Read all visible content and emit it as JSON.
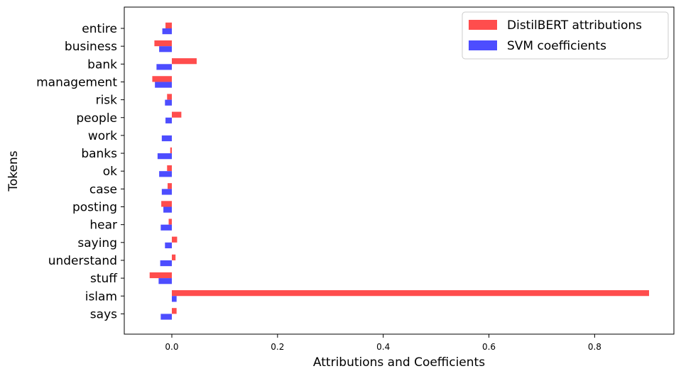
{
  "chart_data": {
    "type": "bar",
    "orientation": "horizontal",
    "xlabel": "Attributions and Coefficients",
    "ylabel": "Tokens",
    "xlim": [
      -0.09,
      0.95
    ],
    "x_ticks": [
      0.0,
      0.2,
      0.4,
      0.6,
      0.8
    ],
    "x_tick_labels": [
      "0.0",
      "0.2",
      "0.4",
      "0.6",
      "0.8"
    ],
    "categories": [
      "entire",
      "business",
      "bank",
      "management",
      "risk",
      "people",
      "work",
      "banks",
      "ok",
      "case",
      "posting",
      "hear",
      "saying",
      "understand",
      "stuff",
      "islam",
      "says"
    ],
    "series": [
      {
        "name": "DistilBERT attributions",
        "color": "#ff4d4d",
        "values": [
          -0.012,
          -0.033,
          0.047,
          -0.037,
          -0.009,
          0.018,
          0.0,
          -0.003,
          -0.009,
          -0.008,
          -0.02,
          -0.006,
          0.01,
          0.007,
          -0.042,
          0.903,
          0.009
        ]
      },
      {
        "name": "SVM coefficients",
        "color": "#4d4dff",
        "values": [
          -0.018,
          -0.024,
          -0.029,
          -0.032,
          -0.013,
          -0.012,
          -0.019,
          -0.027,
          -0.024,
          -0.019,
          -0.016,
          -0.021,
          -0.013,
          -0.022,
          -0.025,
          0.009,
          -0.021
        ]
      }
    ],
    "legend_position": "top-right",
    "grid": false
  }
}
